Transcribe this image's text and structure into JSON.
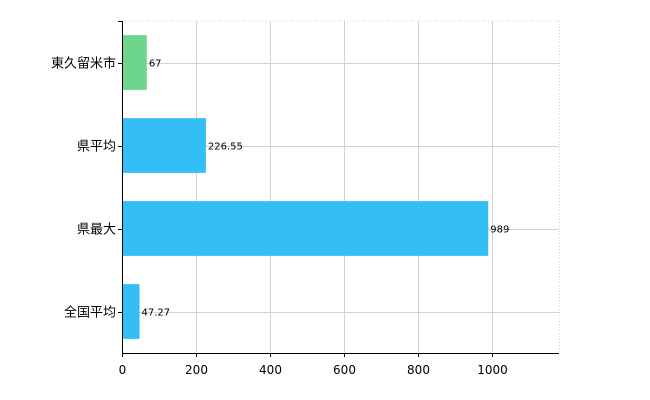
{
  "chart_data": {
    "type": "bar",
    "orientation": "horizontal",
    "categories": [
      "東久留米市",
      "県平均",
      "県最大",
      "全国平均"
    ],
    "values": [
      67,
      226.55,
      989,
      47.27
    ],
    "value_labels": [
      "67",
      "226.55",
      "989",
      "47.27"
    ],
    "bar_colors": [
      "#6dd58c",
      "#33bff5",
      "#33bff5",
      "#33bff5"
    ],
    "xlim": [
      0,
      1180
    ],
    "xticks": [
      0,
      200,
      400,
      600,
      800,
      1000
    ],
    "grid": true,
    "title": "",
    "xlabel": "",
    "ylabel": ""
  }
}
